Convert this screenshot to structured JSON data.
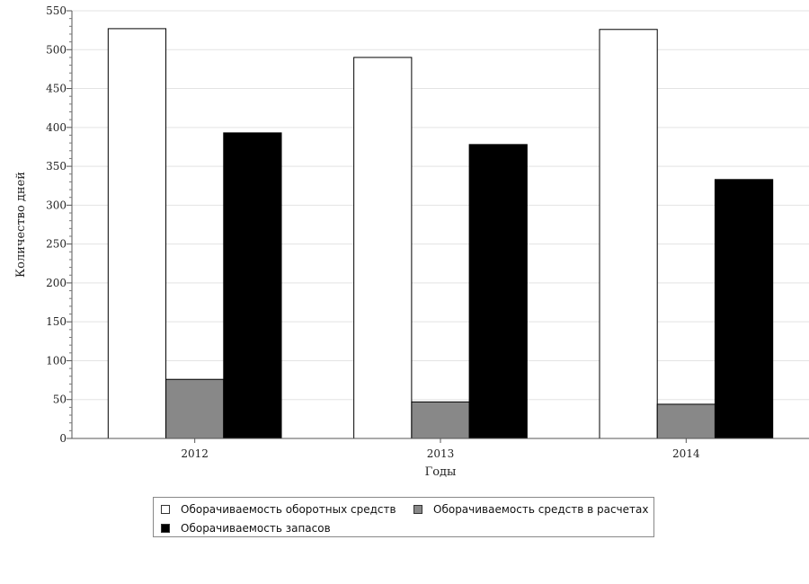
{
  "chart_data": {
    "type": "bar",
    "title": "",
    "xlabel": "Годы",
    "ylabel": "Количество дней",
    "categories": [
      "2012",
      "2013",
      "2014"
    ],
    "series": [
      {
        "name": "Оборачиваемость оборотных средств",
        "values": [
          527,
          490,
          526
        ],
        "color": "#ffffff"
      },
      {
        "name": "Оборачиваемость средств в расчетах",
        "values": [
          76,
          47,
          44
        ],
        "color": "#888888"
      },
      {
        "name": "Оборачиваемость запасов",
        "values": [
          393,
          378,
          333
        ],
        "color": "#000000"
      }
    ],
    "ylim": [
      0,
      550
    ],
    "yticks": [
      "0",
      "50",
      "100",
      "150",
      "200",
      "250",
      "300",
      "350",
      "400",
      "450",
      "500",
      "550"
    ],
    "grid": true,
    "legend_position": "bottom"
  }
}
